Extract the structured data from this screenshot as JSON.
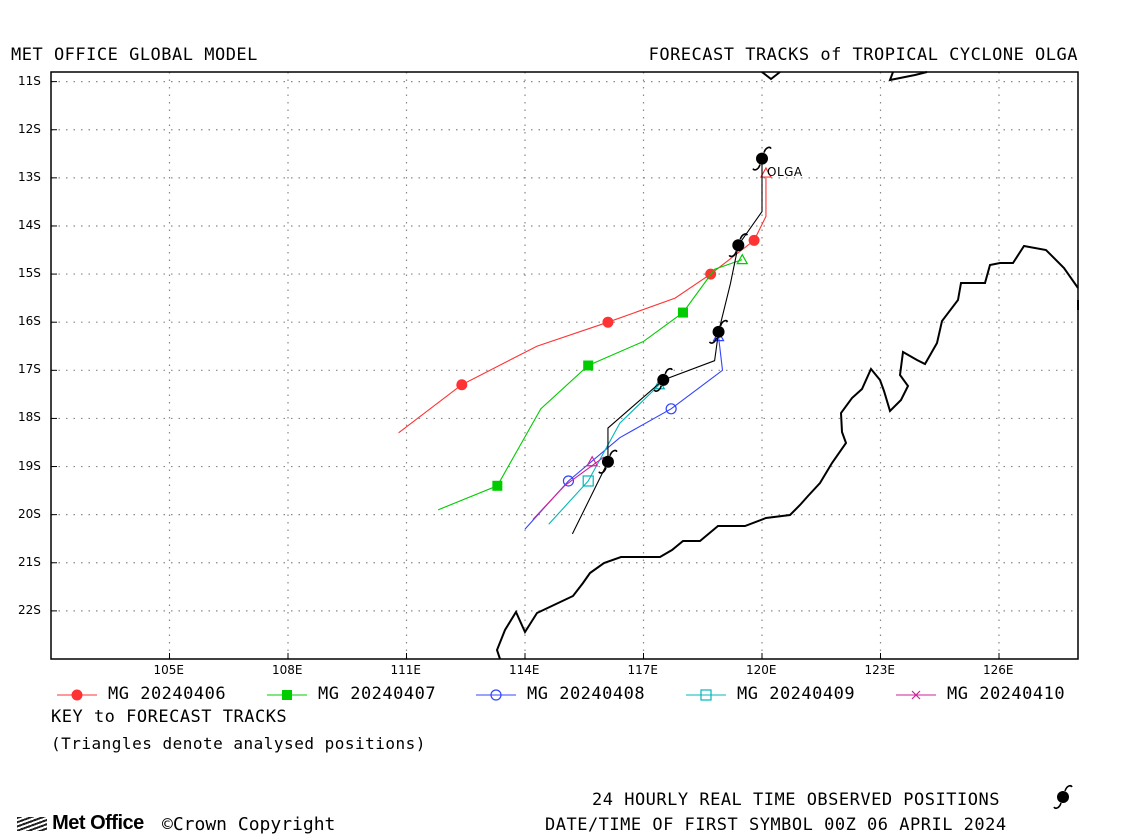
{
  "header": {
    "left_title": "MET OFFICE GLOBAL MODEL",
    "right_title": "FORECAST TRACKS of TROPICAL CYCLONE OLGA"
  },
  "map": {
    "lon_range": [
      102,
      128
    ],
    "lat_range": [
      -23,
      -10.8
    ],
    "lon_ticks": [
      "105E",
      "108E",
      "111E",
      "114E",
      "117E",
      "120E",
      "123E",
      "126E"
    ],
    "lat_ticks": [
      "11S",
      "12S",
      "13S",
      "14S",
      "15S",
      "16S",
      "17S",
      "18S",
      "19S",
      "20S",
      "21S",
      "22S"
    ],
    "grid": "dotted",
    "storm_label": "OLGA",
    "observed_positions": [
      {
        "lon": 120.0,
        "lat": -12.6
      },
      {
        "lon": 119.4,
        "lat": -14.4
      },
      {
        "lon": 118.9,
        "lat": -16.2
      },
      {
        "lon": 117.5,
        "lat": -17.2
      },
      {
        "lon": 116.1,
        "lat": -18.9
      }
    ],
    "observed_track": [
      [
        120.0,
        -12.6
      ],
      [
        120.0,
        -13.7
      ],
      [
        119.4,
        -14.4
      ],
      [
        119.2,
        -15.2
      ],
      [
        118.9,
        -16.2
      ],
      [
        118.8,
        -16.8
      ],
      [
        117.5,
        -17.2
      ],
      [
        116.1,
        -18.2
      ],
      [
        116.1,
        -18.9
      ],
      [
        115.2,
        -20.4
      ]
    ],
    "tracks": [
      {
        "name": "MG 20240406",
        "color": "#ff3333",
        "marker": "filled-circle",
        "line": [
          [
            120.1,
            -13.0
          ],
          [
            120.1,
            -13.8
          ],
          [
            119.8,
            -14.3
          ],
          [
            118.7,
            -15.0
          ],
          [
            117.8,
            -15.5
          ],
          [
            116.1,
            -16.0
          ],
          [
            114.3,
            -16.5
          ],
          [
            112.4,
            -17.3
          ],
          [
            110.8,
            -18.3
          ]
        ],
        "markers": [
          [
            119.8,
            -14.3
          ],
          [
            118.7,
            -15.0
          ],
          [
            116.1,
            -16.0
          ],
          [
            112.4,
            -17.3
          ]
        ],
        "analysed": [
          120.1,
          -12.9
        ]
      },
      {
        "name": "MG 20240407",
        "color": "#00cc00",
        "marker": "filled-square",
        "line": [
          [
            119.5,
            -14.7
          ],
          [
            118.8,
            -14.9
          ],
          [
            118.0,
            -15.8
          ],
          [
            117.0,
            -16.4
          ],
          [
            115.6,
            -16.9
          ],
          [
            114.4,
            -17.8
          ],
          [
            113.3,
            -19.4
          ],
          [
            111.8,
            -19.9
          ]
        ],
        "markers": [
          [
            118.0,
            -15.8
          ],
          [
            115.6,
            -16.9
          ],
          [
            113.3,
            -19.4
          ]
        ],
        "analysed": [
          119.5,
          -14.7
        ]
      },
      {
        "name": "MG 20240408",
        "color": "#3344ff",
        "marker": "open-circle",
        "line": [
          [
            118.9,
            -16.3
          ],
          [
            119.0,
            -17.0
          ],
          [
            117.7,
            -17.8
          ],
          [
            116.4,
            -18.4
          ],
          [
            115.1,
            -19.3
          ],
          [
            114.0,
            -20.3
          ]
        ],
        "markers": [
          [
            117.7,
            -17.8
          ],
          [
            115.1,
            -19.3
          ]
        ],
        "analysed": [
          118.9,
          -16.3
        ]
      },
      {
        "name": "MG 20240409",
        "color": "#00b8b8",
        "marker": "open-square",
        "line": [
          [
            117.4,
            -17.3
          ],
          [
            116.4,
            -18.1
          ],
          [
            115.6,
            -19.3
          ],
          [
            114.6,
            -20.2
          ]
        ],
        "markers": [
          [
            115.6,
            -19.3
          ]
        ],
        "analysed": [
          117.4,
          -17.3
        ]
      },
      {
        "name": "MG 20240410",
        "color": "#cc2299",
        "marker": "cross",
        "line": [
          [
            116.0,
            -18.8
          ],
          [
            115.0,
            -19.4
          ],
          [
            114.2,
            -20.1
          ]
        ],
        "markers": [],
        "analysed": [
          115.7,
          -18.9
        ]
      }
    ]
  },
  "legend": {
    "key_title": "KEY to FORECAST TRACKS",
    "key_note": "(Triangles denote analysed positions)"
  },
  "footer": {
    "logo_text": "Met Office",
    "copyright": "©Crown Copyright",
    "observed_note": "24 HOURLY REAL TIME OBSERVED POSITIONS",
    "first_symbol": "DATE/TIME OF FIRST SYMBOL 00Z 06 APRIL 2024"
  }
}
